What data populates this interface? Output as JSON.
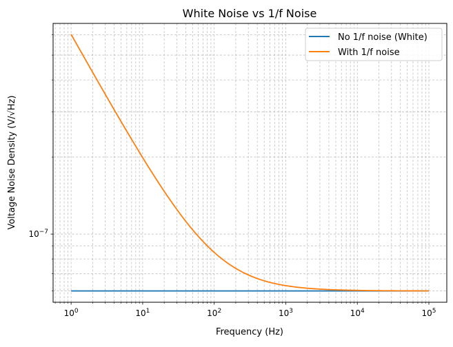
{
  "chart_data": {
    "type": "line",
    "title": "White Noise vs 1/f Noise",
    "xlabel": "Frequency (Hz)",
    "ylabel": "Voltage Noise Density (V/√Hz)",
    "xscale": "log",
    "yscale": "log",
    "xlim": [
      0.56,
      178000
    ],
    "ylim": [
      5.42e-08,
      6.65e-07
    ],
    "grid": true,
    "x_ticks": [
      {
        "value": 1,
        "base": "10",
        "exp": "0"
      },
      {
        "value": 10,
        "base": "10",
        "exp": "1"
      },
      {
        "value": 100,
        "base": "10",
        "exp": "2"
      },
      {
        "value": 1000,
        "base": "10",
        "exp": "3"
      },
      {
        "value": 10000,
        "base": "10",
        "exp": "4"
      },
      {
        "value": 100000,
        "base": "10",
        "exp": "5"
      }
    ],
    "y_ticks": [
      {
        "value": 1e-07,
        "base": "10",
        "exp": "−7"
      }
    ],
    "legend_position": "top-right",
    "series": [
      {
        "name": "No 1/f noise (White)",
        "color": "#1f77b4",
        "model": "white",
        "white_level": 6e-08
      },
      {
        "name": "With 1/f noise",
        "color": "#ff7f0e",
        "model": "white_plus_flicker",
        "white_level": 6e-08,
        "corner_frequency_hz": 100
      }
    ],
    "x_range": [
      1,
      100000
    ]
  }
}
